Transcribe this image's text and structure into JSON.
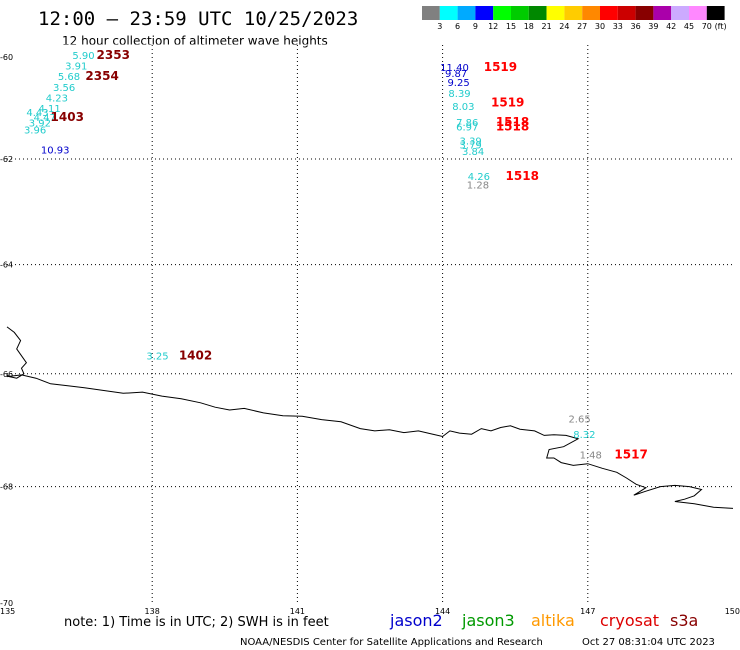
{
  "header": {
    "title": "12:00 – 23:59 UTC 10/25/2023",
    "subtitle": "12 hour collection of altimeter wave heights"
  },
  "legend": {
    "unit": "(ft)",
    "items": [
      {
        "label": "3",
        "color": "#808080"
      },
      {
        "label": "6",
        "color": "#00ffff"
      },
      {
        "label": "9",
        "color": "#00aaff"
      },
      {
        "label": "12",
        "color": "#0000ff"
      },
      {
        "label": "15",
        "color": "#00ff00"
      },
      {
        "label": "18",
        "color": "#00cc00"
      },
      {
        "label": "21",
        "color": "#008800"
      },
      {
        "label": "24",
        "color": "#ffff00"
      },
      {
        "label": "27",
        "color": "#ffcc00"
      },
      {
        "label": "30",
        "color": "#ff8800"
      },
      {
        "label": "33",
        "color": "#ff0000"
      },
      {
        "label": "36",
        "color": "#cc0000"
      },
      {
        "label": "39",
        "color": "#880000"
      },
      {
        "label": "42",
        "color": "#aa00aa"
      },
      {
        "label": "45",
        "color": "#ccaaff"
      },
      {
        "label": "70",
        "color": "#ff88ff"
      },
      {
        "label": "",
        "color": "#000000"
      }
    ]
  },
  "axes": {
    "lon_labels": [
      "135",
      "138",
      "141",
      "144",
      "147",
      "150"
    ],
    "lat_labels": [
      "-60",
      "-62",
      "-64",
      "-66",
      "-68",
      "-70"
    ],
    "lon_min": 135,
    "lon_max": 150,
    "lat_min": -70,
    "lat_max": -60,
    "gridlines": true
  },
  "observations": [
    {
      "text": "5.90",
      "lon": 136.35,
      "lat": -60.04,
      "color": "#22cccc"
    },
    {
      "text": "3.91",
      "lon": 136.2,
      "lat": -60.25,
      "color": "#22cccc"
    },
    {
      "text": "5.68",
      "lon": 136.05,
      "lat": -60.46,
      "color": "#22cccc"
    },
    {
      "text": "3.56",
      "lon": 135.95,
      "lat": -60.67,
      "color": "#22cccc"
    },
    {
      "text": "4.23",
      "lon": 135.8,
      "lat": -60.88,
      "color": "#22cccc"
    },
    {
      "text": "4.11",
      "lon": 135.65,
      "lat": -61.09,
      "color": "#22cccc"
    },
    {
      "text": "4.43",
      "lon": 135.4,
      "lat": -61.17,
      "color": "#22cccc"
    },
    {
      "text": "4.47",
      "lon": 135.55,
      "lat": -61.26,
      "color": "#22cccc"
    },
    {
      "text": "3.92",
      "lon": 135.45,
      "lat": -61.37,
      "color": "#22cccc"
    },
    {
      "text": "3.96",
      "lon": 135.35,
      "lat": -61.51,
      "color": "#22cccc"
    },
    {
      "text": "10.93",
      "lon": 135.7,
      "lat": -61.89,
      "color": "#0000cc"
    },
    {
      "text": "11.40",
      "lon": 143.95,
      "lat": -60.28,
      "color": "#0000cc"
    },
    {
      "text": "9.87",
      "lon": 144.05,
      "lat": -60.4,
      "color": "#0000cc"
    },
    {
      "text": "9.25",
      "lon": 144.1,
      "lat": -60.58,
      "color": "#0000cc"
    },
    {
      "text": "8.39",
      "lon": 144.12,
      "lat": -60.79,
      "color": "#22cccc"
    },
    {
      "text": "8.03",
      "lon": 144.2,
      "lat": -61.05,
      "color": "#22cccc"
    },
    {
      "text": "7.86",
      "lon": 144.28,
      "lat": -61.36,
      "color": "#22cccc"
    },
    {
      "text": "6.97",
      "lon": 144.28,
      "lat": -61.45,
      "color": "#22cccc"
    },
    {
      "text": "3.39",
      "lon": 144.35,
      "lat": -61.72,
      "color": "#22cccc"
    },
    {
      "text": "3.79",
      "lon": 144.35,
      "lat": -61.8,
      "color": "#22cccc"
    },
    {
      "text": "3.84",
      "lon": 144.4,
      "lat": -61.92,
      "color": "#22cccc"
    },
    {
      "text": "4.26",
      "lon": 144.52,
      "lat": -62.4,
      "color": "#22cccc"
    },
    {
      "text": "1.28",
      "lon": 144.5,
      "lat": -62.57,
      "color": "#888888"
    },
    {
      "text": "3.25",
      "lon": 137.88,
      "lat": -65.74,
      "color": "#22cccc"
    },
    {
      "text": "2.65",
      "lon": 146.6,
      "lat": -66.87,
      "color": "#888888"
    },
    {
      "text": "8.32",
      "lon": 146.7,
      "lat": -67.15,
      "color": "#22cccc"
    },
    {
      "text": "1.48",
      "lon": 146.83,
      "lat": -67.51,
      "color": "#888888"
    }
  ],
  "times": [
    {
      "text": "2353",
      "lon": 136.85,
      "lat": -60.04,
      "color": "#880000"
    },
    {
      "text": "2354",
      "lon": 136.62,
      "lat": -60.46,
      "color": "#880000"
    },
    {
      "text": "1403",
      "lon": 135.9,
      "lat": -61.26,
      "color": "#880000"
    },
    {
      "text": "1519",
      "lon": 144.85,
      "lat": -60.28,
      "color": "#ff0000"
    },
    {
      "text": "1519",
      "lon": 145.0,
      "lat": -60.98,
      "color": "#ff0000"
    },
    {
      "text": "1518",
      "lon": 145.1,
      "lat": -61.36,
      "color": "#ff0000"
    },
    {
      "text": "1518",
      "lon": 145.1,
      "lat": -61.45,
      "color": "#ff0000"
    },
    {
      "text": "1518",
      "lon": 145.3,
      "lat": -62.4,
      "color": "#ff0000"
    },
    {
      "text": "1402",
      "lon": 138.55,
      "lat": -65.74,
      "color": "#880000"
    },
    {
      "text": "1517",
      "lon": 147.55,
      "lat": -67.51,
      "color": "#ff0000"
    }
  ],
  "coastline_segments": [
    [
      [
        135.0,
        -65.15
      ],
      [
        135.15,
        -65.25
      ],
      [
        135.28,
        -65.4
      ],
      [
        135.2,
        -65.55
      ],
      [
        135.32,
        -65.7
      ],
      [
        135.4,
        -65.8
      ],
      [
        135.3,
        -65.9
      ],
      [
        135.35,
        -66.0
      ],
      [
        135.2,
        -66.08
      ],
      [
        135.05,
        -66.05
      ],
      [
        135.0,
        -66.02
      ]
    ],
    [
      [
        135.0,
        -66.05
      ],
      [
        135.3,
        -66.02
      ],
      [
        135.6,
        -66.08
      ],
      [
        135.9,
        -66.18
      ],
      [
        136.3,
        -66.22
      ],
      [
        136.6,
        -66.25
      ],
      [
        137.0,
        -66.3
      ],
      [
        137.4,
        -66.35
      ],
      [
        137.8,
        -66.33
      ],
      [
        138.2,
        -66.4
      ],
      [
        138.6,
        -66.45
      ],
      [
        139.0,
        -66.52
      ],
      [
        139.3,
        -66.6
      ],
      [
        139.6,
        -66.65
      ],
      [
        139.9,
        -66.62
      ],
      [
        140.3,
        -66.7
      ],
      [
        140.7,
        -66.75
      ],
      [
        141.1,
        -66.76
      ],
      [
        141.5,
        -66.82
      ],
      [
        141.9,
        -66.86
      ],
      [
        142.3,
        -66.98
      ],
      [
        142.6,
        -67.02
      ],
      [
        142.9,
        -67.0
      ],
      [
        143.2,
        -67.05
      ],
      [
        143.5,
        -67.02
      ],
      [
        143.8,
        -67.08
      ],
      [
        144.0,
        -67.12
      ],
      [
        144.15,
        -67.02
      ],
      [
        144.35,
        -67.06
      ],
      [
        144.6,
        -67.08
      ],
      [
        144.8,
        -66.98
      ],
      [
        145.0,
        -67.02
      ],
      [
        145.2,
        -66.96
      ],
      [
        145.4,
        -66.93
      ],
      [
        145.6,
        -66.99
      ],
      [
        145.9,
        -67.02
      ],
      [
        146.1,
        -67.1
      ],
      [
        146.3,
        -67.09
      ],
      [
        146.55,
        -67.1
      ],
      [
        146.8,
        -67.16
      ],
      [
        146.5,
        -67.3
      ],
      [
        146.2,
        -67.35
      ],
      [
        146.15,
        -67.5
      ],
      [
        146.3,
        -67.5
      ],
      [
        146.45,
        -67.58
      ],
      [
        146.7,
        -67.63
      ],
      [
        147.0,
        -67.6
      ],
      [
        147.3,
        -67.68
      ],
      [
        147.6,
        -67.75
      ],
      [
        147.8,
        -67.85
      ],
      [
        148.0,
        -67.96
      ],
      [
        148.2,
        -68.02
      ],
      [
        148.05,
        -68.1
      ],
      [
        147.95,
        -68.15
      ],
      [
        148.2,
        -68.08
      ],
      [
        148.5,
        -68.0
      ],
      [
        148.8,
        -67.98
      ],
      [
        149.1,
        -68.0
      ],
      [
        149.35,
        -68.05
      ],
      [
        149.2,
        -68.16
      ],
      [
        149.0,
        -68.22
      ],
      [
        148.8,
        -68.26
      ],
      [
        149.2,
        -68.3
      ],
      [
        149.6,
        -68.36
      ],
      [
        150.0,
        -68.38
      ]
    ]
  ],
  "footer": {
    "note": "note:  1) Time is in UTC;  2) SWH is in feet",
    "satellites": [
      {
        "name": "jason2",
        "color": "#0000cc"
      },
      {
        "name": "jason3",
        "color": "#009900"
      },
      {
        "name": "altika",
        "color": "#ff9900"
      },
      {
        "name": "cryosat",
        "color": "#dd0000"
      },
      {
        "name": "s3a",
        "color": "#880000"
      }
    ],
    "credit": "NOAA/NESDIS Center for Satellite Applications and Research",
    "timestamp": "Oct 27 08:31:04 UTC 2023"
  }
}
